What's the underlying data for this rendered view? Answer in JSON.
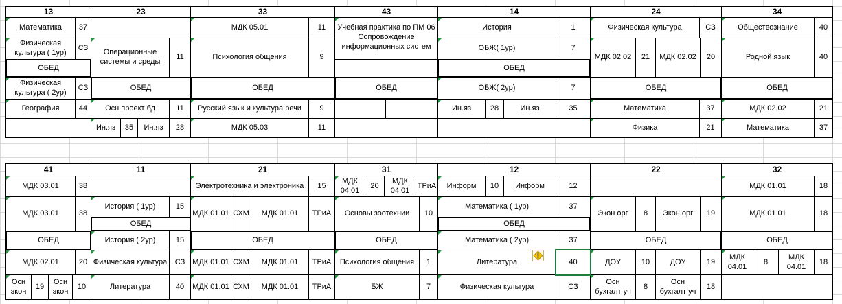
{
  "groups_top": [
    "13",
    "23",
    "33",
    "43",
    "14",
    "24",
    "34"
  ],
  "groups_bottom": [
    "41",
    "11",
    "21",
    "31",
    "12",
    "22",
    "32"
  ],
  "lunch": "ОБЕД",
  "t13": {
    "r1_subject": "Математика",
    "r1_room": "37",
    "r2_subject": "Физическая культура ( 1ур)",
    "r2_room": "СЗ",
    "r3_subject": "Физическая культура ( 2ур)",
    "r3_room": "СЗ",
    "r4_subject": "География",
    "r4_room": "44"
  },
  "t23": {
    "r2_subject": "Операционные системы и среды",
    "r2_room": "11",
    "r4_subject": "Осн проект бд",
    "r4_room": "11",
    "r5_sub1": "Ин.яз",
    "r5_room1": "35",
    "r5_sub2": "Ин.яз",
    "r5_room2": "28"
  },
  "t33": {
    "r1_subject": "МДК 05.01",
    "r1_room": "11",
    "r2_subject": "Психология общения",
    "r2_room": "9",
    "r4_subject": "Русский язык и культура речи",
    "r4_room": "9",
    "r5_subject": "МДК 05.03",
    "r5_room": "11"
  },
  "t43": {
    "r1_subject": "Учебная практика по ПМ 06 Сопровождение информационных систем"
  },
  "t14": {
    "r1_subject": "История",
    "r1_room": "1",
    "r2_subject": "ОБЖ( 1ур)",
    "r2_room": "7",
    "r3_subject": "ОБЖ( 2ур)",
    "r3_room": "7",
    "r4_sub1": "Ин.яз",
    "r4_room1": "28",
    "r4_sub2": "Ин.яз",
    "r4_room2": "35"
  },
  "t24": {
    "r1_subject": "Физическая культура",
    "r1_room": "СЗ",
    "r2_sub1": "МДК 02.02",
    "r2_room1": "21",
    "r2_sub2": "МДК 02.02",
    "r2_room2": "20",
    "r4_subject": "Математика",
    "r4_room": "37",
    "r5_subject": "Физика",
    "r5_room": "21"
  },
  "t34": {
    "r1_subject": "Обществознание",
    "r1_room": "40",
    "r2_subject": "Родной язык",
    "r2_room": "40",
    "r4_subject": "МДК 02.02",
    "r4_room": "21",
    "r5_subject": "Математика",
    "r5_room": "37"
  },
  "b41": {
    "r1_subject": "МДК 03.01",
    "r1_room": "38",
    "r2_subject": "МДК 03.01",
    "r2_room": "38",
    "r4_subject": "МДК 02.01",
    "r4_room": "20",
    "r5_sub1": "Осн экон",
    "r5_room1": "19",
    "r5_sub2": "Осн экон",
    "r5_room2": "10"
  },
  "b11": {
    "r2_subject": "История ( 1ур)",
    "r2_room": "15",
    "r3_subject": "История ( 2ур)",
    "r3_room": "15",
    "r4_subject": "Физическая культура",
    "r4_room": "СЗ",
    "r5_subject": "Литература",
    "r5_room": "40"
  },
  "b21": {
    "r1_subject": "Электротехника и электроника",
    "r1_room": "15",
    "r2_sub1": "МДК 01.01",
    "r2_room1": "СХМ",
    "r2_sub2": "МДК 01.01",
    "r2_room2": "ТРиА",
    "r4_sub1": "МДК 01.01",
    "r4_room1": "СХМ",
    "r4_sub2": "МДК 01.01",
    "r4_room2": "ТРиА",
    "r5_sub1": "МДК 01.01",
    "r5_room1": "СХМ",
    "r5_sub2": "МДК 01.01",
    "r5_room2": "ТРиА"
  },
  "b31": {
    "r1_sub1": "МДК 04.01",
    "r1_room1": "20",
    "r1_sub2": "МДК 04.01",
    "r1_room2": "ТРиА",
    "r2_subject": "Основы зоотехнии",
    "r2_room": "10",
    "r4_subject": "Психология общения",
    "r4_room": "1",
    "r5_subject": "БЖ",
    "r5_room": "7"
  },
  "b12": {
    "r1_sub1": "Информ",
    "r1_room1": "10",
    "r1_sub2": "Информ",
    "r1_room2": "12",
    "r2_subject": "Математика  ( 1ур)",
    "r2_room": "37",
    "r3_subject": "Математика ( 2ур)",
    "r3_room": "37",
    "r4_subject": "Литература",
    "r4_room": "40",
    "r5_subject": "Физическая культура",
    "r5_room": "СЗ"
  },
  "b22": {
    "r2_sub1": "Экон  орг",
    "r2_room1": "8",
    "r2_sub2": "Экон  орг",
    "r2_room2": "19",
    "r4_sub1": "ДОУ",
    "r4_room1": "10",
    "r4_sub2": "ДОУ",
    "r4_room2": "19",
    "r5_sub1": "Осн бухгалт уч",
    "r5_room1": "8",
    "r5_sub2": "Осн бухгалт уч",
    "r5_room2": "18"
  },
  "b32": {
    "r1_subject": "МДК 01.01",
    "r1_room": "18",
    "r2_subject": "МДК 01.01",
    "r2_room": "18",
    "r4_sub1": "МДК 04.01",
    "r4_room1": "8",
    "r4_sub2": "МДК 04.01",
    "r4_room2": "18"
  },
  "warning_icon": "warning-diamond-icon",
  "colors": {
    "cell_marker": "#1a9a3a",
    "selection": "#1e7d3a",
    "gridline": "#d9d9d9",
    "warning": "#f5c400"
  }
}
